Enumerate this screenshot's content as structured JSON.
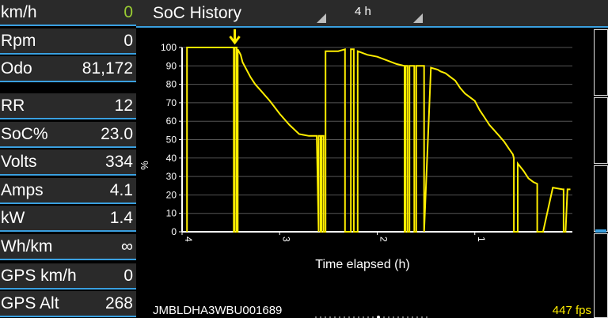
{
  "sidebar": {
    "stats": [
      {
        "label": "km/h",
        "value": "0",
        "value_color": "#9acd32"
      },
      {
        "label": "Rpm",
        "value": "0"
      },
      {
        "label": "Odo",
        "value": "81,172"
      },
      {
        "label": "RR",
        "value": "12"
      },
      {
        "label": "SoC%",
        "value": "23.0"
      },
      {
        "label": "Volts",
        "value": "334"
      },
      {
        "label": "Amps",
        "value": "4.1"
      },
      {
        "label": "kW",
        "value": "1.4"
      },
      {
        "label": "Wh/km",
        "value": "∞"
      },
      {
        "label": "GPS km/h",
        "value": "0"
      },
      {
        "label": "GPS Alt",
        "value": "268"
      }
    ]
  },
  "header": {
    "title": "SoC History",
    "period": "4 h"
  },
  "footer": {
    "vin": "JMBLDHA3WBU001689",
    "fps": "447 fps"
  },
  "colors": {
    "accent": "#3aa0e0",
    "line": "#ffee00",
    "panel": "#2a2a2a"
  },
  "icons": {
    "marker": "down-arrow-icon"
  },
  "chart_data": {
    "type": "line",
    "xlabel": "Time elapsed (h)",
    "ylabel": "%",
    "x_ticks": [
      "4",
      "3",
      "2",
      "1"
    ],
    "y_ticks": [
      "0",
      "10",
      "20",
      "30",
      "40",
      "50",
      "60",
      "70",
      "80",
      "90",
      "100"
    ],
    "xlim": [
      4,
      0
    ],
    "ylim": [
      0,
      100
    ],
    "grid": "horizontal",
    "series": [
      {
        "x": [
          3.95,
          3.95,
          3.47,
          3.47,
          3.46,
          3.46,
          3.44,
          3.44,
          3.43,
          3.43,
          3.4,
          3.38,
          3.3,
          3.25,
          3.2,
          3.1,
          3.0,
          2.9,
          2.8,
          2.7,
          2.62,
          2.6,
          2.6,
          2.58,
          2.58,
          2.57,
          2.57,
          2.55,
          2.55,
          2.53,
          2.53,
          2.53,
          2.4,
          2.33,
          2.33,
          2.3,
          2.27,
          2.27,
          2.24,
          2.24,
          2.2,
          2.2,
          2.1,
          2.0,
          1.9,
          1.8,
          1.72,
          1.72,
          1.71,
          1.71,
          1.69,
          1.69,
          1.67,
          1.67,
          1.62,
          1.62,
          1.6,
          1.6,
          1.52,
          1.52,
          1.45,
          1.38,
          1.35,
          1.3,
          1.25,
          1.2,
          1.15,
          1.1,
          1.0,
          0.95,
          0.9,
          0.85,
          0.8,
          0.75,
          0.7,
          0.65,
          0.61,
          0.6,
          0.6,
          0.56,
          0.56,
          0.5,
          0.45,
          0.4,
          0.36,
          0.36,
          0.3,
          0.2,
          0.1,
          0.09,
          0.09,
          0.07,
          0.05,
          0.02
        ],
        "y": [
          0,
          100,
          100,
          0,
          0,
          100,
          100,
          0,
          0,
          99,
          96,
          92,
          84,
          80,
          77,
          71,
          64,
          58,
          53,
          52,
          52,
          0,
          52,
          52,
          0,
          0,
          52,
          52,
          0,
          0,
          98,
          98,
          98,
          99,
          0,
          0,
          0,
          99,
          99,
          0,
          0,
          98,
          96,
          95,
          93,
          91,
          90,
          0,
          0,
          90,
          90,
          0,
          0,
          90,
          90,
          0,
          0,
          90,
          90,
          0,
          89,
          88,
          87,
          86,
          84,
          82,
          78,
          75,
          71,
          66,
          62,
          58,
          55,
          52,
          49,
          45,
          42,
          40,
          0,
          0,
          37,
          33,
          29,
          27,
          26,
          0,
          0,
          24,
          23,
          23,
          0,
          0,
          23,
          23
        ]
      }
    ]
  }
}
